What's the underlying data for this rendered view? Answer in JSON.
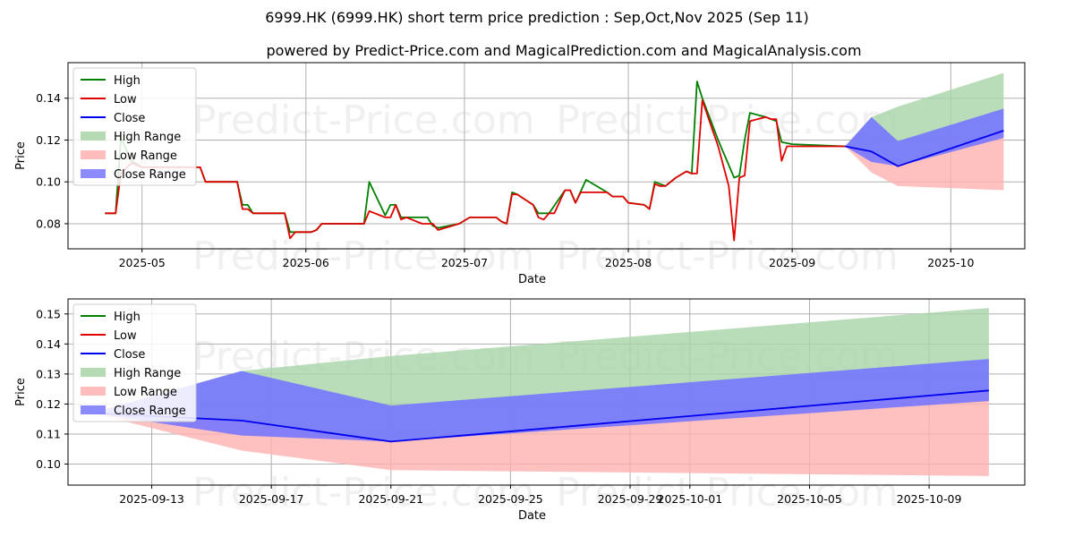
{
  "title": "6999.HK (6999.HK) short term price prediction : Sep,Oct,Nov 2025 (Sep 11)",
  "subtitle": "powered by Predict-Price.com and MagicalPrediction.com and MagicalAnalysis.com",
  "watermark": "Predict-Price.com",
  "colors": {
    "high": "#008000",
    "low": "#e00000",
    "close": "#0000ee",
    "high_range": "#a8d5a8",
    "low_range": "#ffb0b0",
    "close_range": "#7777ff"
  },
  "chart_data": [
    {
      "type": "line",
      "name": "history",
      "xlabel": "Date",
      "ylabel": "Price",
      "xlim": [
        "2025-04-17",
        "2025-10-15"
      ],
      "ylim": [
        0.068,
        0.157
      ],
      "x_ticks": [
        "2025-05",
        "2025-06",
        "2025-07",
        "2025-08",
        "2025-09",
        "2025-10"
      ],
      "x_tick_dates": [
        "2025-05-01",
        "2025-06-01",
        "2025-07-01",
        "2025-08-01",
        "2025-09-01",
        "2025-10-01"
      ],
      "y_ticks": [
        "0.08",
        "0.10",
        "0.12",
        "0.14"
      ],
      "y_tick_values": [
        0.08,
        0.1,
        0.12,
        0.14
      ],
      "legend": [
        "High",
        "Low",
        "Close",
        "High Range",
        "Low Range",
        "Close Range"
      ],
      "legend_position": "upper-left",
      "series": [
        {
          "name": "High",
          "points": [
            [
              "2025-04-24",
              0.085
            ],
            [
              "2025-04-26",
              0.085
            ],
            [
              "2025-04-27",
              0.121
            ],
            [
              "2025-04-29",
              0.11
            ],
            [
              "2025-05-01",
              0.107
            ],
            [
              "2025-05-12",
              0.107
            ],
            [
              "2025-05-13",
              0.1
            ],
            [
              "2025-05-19",
              0.1
            ],
            [
              "2025-05-20",
              0.089
            ],
            [
              "2025-05-21",
              0.089
            ],
            [
              "2025-05-22",
              0.085
            ],
            [
              "2025-05-28",
              0.085
            ],
            [
              "2025-05-29",
              0.076
            ],
            [
              "2025-06-02",
              0.076
            ],
            [
              "2025-06-03",
              0.077
            ],
            [
              "2025-06-04",
              0.08
            ],
            [
              "2025-06-12",
              0.08
            ],
            [
              "2025-06-13",
              0.1
            ],
            [
              "2025-06-16",
              0.084
            ],
            [
              "2025-06-17",
              0.089
            ],
            [
              "2025-06-18",
              0.089
            ],
            [
              "2025-06-19",
              0.083
            ],
            [
              "2025-06-24",
              0.083
            ],
            [
              "2025-06-25",
              0.079
            ],
            [
              "2025-06-26",
              0.078
            ],
            [
              "2025-06-30",
              0.08
            ],
            [
              "2025-07-02",
              0.083
            ],
            [
              "2025-07-07",
              0.083
            ],
            [
              "2025-07-08",
              0.081
            ],
            [
              "2025-07-09",
              0.08
            ],
            [
              "2025-07-10",
              0.095
            ],
            [
              "2025-07-11",
              0.094
            ],
            [
              "2025-07-14",
              0.089
            ],
            [
              "2025-07-15",
              0.085
            ],
            [
              "2025-07-17",
              0.085
            ],
            [
              "2025-07-20",
              0.096
            ],
            [
              "2025-07-21",
              0.096
            ],
            [
              "2025-07-22",
              0.09
            ],
            [
              "2025-07-24",
              0.101
            ],
            [
              "2025-07-28",
              0.095
            ],
            [
              "2025-07-29",
              0.093
            ],
            [
              "2025-07-31",
              0.093
            ],
            [
              "2025-08-01",
              0.09
            ],
            [
              "2025-08-04",
              0.089
            ],
            [
              "2025-08-05",
              0.087
            ],
            [
              "2025-08-06",
              0.1
            ],
            [
              "2025-08-07",
              0.099
            ],
            [
              "2025-08-08",
              0.098
            ],
            [
              "2025-08-10",
              0.102
            ],
            [
              "2025-08-12",
              0.105
            ],
            [
              "2025-08-13",
              0.104
            ],
            [
              "2025-08-14",
              0.148
            ],
            [
              "2025-08-15",
              0.14
            ],
            [
              "2025-08-18",
              0.12
            ],
            [
              "2025-08-20",
              0.108
            ],
            [
              "2025-08-21",
              0.102
            ],
            [
              "2025-08-22",
              0.103
            ],
            [
              "2025-08-23",
              0.12
            ],
            [
              "2025-08-24",
              0.133
            ],
            [
              "2025-08-27",
              0.131
            ],
            [
              "2025-08-29",
              0.129
            ],
            [
              "2025-08-30",
              0.119
            ],
            [
              "2025-09-01",
              0.118
            ],
            [
              "2025-09-11",
              0.117
            ]
          ]
        },
        {
          "name": "Low",
          "points": [
            [
              "2025-04-24",
              0.085
            ],
            [
              "2025-04-26",
              0.085
            ],
            [
              "2025-04-27",
              0.104
            ],
            [
              "2025-04-29",
              0.109
            ],
            [
              "2025-05-01",
              0.107
            ],
            [
              "2025-05-12",
              0.107
            ],
            [
              "2025-05-13",
              0.1
            ],
            [
              "2025-05-19",
              0.1
            ],
            [
              "2025-05-20",
              0.087
            ],
            [
              "2025-05-21",
              0.087
            ],
            [
              "2025-05-22",
              0.085
            ],
            [
              "2025-05-28",
              0.085
            ],
            [
              "2025-05-29",
              0.073
            ],
            [
              "2025-05-30",
              0.076
            ],
            [
              "2025-06-02",
              0.076
            ],
            [
              "2025-06-03",
              0.077
            ],
            [
              "2025-06-04",
              0.08
            ],
            [
              "2025-06-12",
              0.08
            ],
            [
              "2025-06-13",
              0.086
            ],
            [
              "2025-06-16",
              0.083
            ],
            [
              "2025-06-17",
              0.083
            ],
            [
              "2025-06-18",
              0.089
            ],
            [
              "2025-06-19",
              0.082
            ],
            [
              "2025-06-20",
              0.083
            ],
            [
              "2025-06-23",
              0.08
            ],
            [
              "2025-06-25",
              0.08
            ],
            [
              "2025-06-26",
              0.077
            ],
            [
              "2025-06-30",
              0.08
            ],
            [
              "2025-07-02",
              0.083
            ],
            [
              "2025-07-07",
              0.083
            ],
            [
              "2025-07-08",
              0.081
            ],
            [
              "2025-07-09",
              0.08
            ],
            [
              "2025-07-10",
              0.094
            ],
            [
              "2025-07-11",
              0.094
            ],
            [
              "2025-07-14",
              0.089
            ],
            [
              "2025-07-15",
              0.083
            ],
            [
              "2025-07-16",
              0.082
            ],
            [
              "2025-07-17",
              0.085
            ],
            [
              "2025-07-18",
              0.085
            ],
            [
              "2025-07-20",
              0.096
            ],
            [
              "2025-07-21",
              0.096
            ],
            [
              "2025-07-22",
              0.09
            ],
            [
              "2025-07-23",
              0.095
            ],
            [
              "2025-07-28",
              0.095
            ],
            [
              "2025-07-29",
              0.093
            ],
            [
              "2025-07-31",
              0.093
            ],
            [
              "2025-08-01",
              0.09
            ],
            [
              "2025-08-04",
              0.089
            ],
            [
              "2025-08-05",
              0.087
            ],
            [
              "2025-08-06",
              0.099
            ],
            [
              "2025-08-07",
              0.098
            ],
            [
              "2025-08-08",
              0.098
            ],
            [
              "2025-08-10",
              0.102
            ],
            [
              "2025-08-12",
              0.105
            ],
            [
              "2025-08-13",
              0.104
            ],
            [
              "2025-08-14",
              0.104
            ],
            [
              "2025-08-15",
              0.139
            ],
            [
              "2025-08-18",
              0.117
            ],
            [
              "2025-08-20",
              0.098
            ],
            [
              "2025-08-21",
              0.072
            ],
            [
              "2025-08-22",
              0.102
            ],
            [
              "2025-08-23",
              0.103
            ],
            [
              "2025-08-24",
              0.129
            ],
            [
              "2025-08-27",
              0.131
            ],
            [
              "2025-08-28",
              0.13
            ],
            [
              "2025-08-29",
              0.13
            ],
            [
              "2025-08-30",
              0.11
            ],
            [
              "2025-08-31",
              0.117
            ],
            [
              "2025-09-01",
              0.117
            ],
            [
              "2025-09-11",
              0.117
            ]
          ]
        },
        {
          "name": "Close",
          "points": [
            [
              "2025-09-11",
              0.117
            ],
            [
              "2025-09-16",
              0.1145
            ],
            [
              "2025-09-21",
              0.1075
            ],
            [
              "2025-10-11",
              0.1245
            ]
          ]
        },
        {
          "name": "High Range",
          "points": [
            [
              "2025-09-11",
              0.117
            ],
            [
              "2025-09-16",
              0.131
            ],
            [
              "2025-09-21",
              0.136
            ],
            [
              "2025-10-11",
              0.152
            ]
          ]
        },
        {
          "name": "Low Range",
          "points": [
            [
              "2025-09-11",
              0.117
            ],
            [
              "2025-09-16",
              0.1045
            ],
            [
              "2025-09-21",
              0.098
            ],
            [
              "2025-10-11",
              0.096
            ]
          ]
        },
        {
          "name": "Close Range",
          "upper": [
            [
              "2025-09-11",
              0.117
            ],
            [
              "2025-09-16",
              0.131
            ],
            [
              "2025-09-21",
              0.1195
            ],
            [
              "2025-10-11",
              0.135
            ]
          ],
          "lower": [
            [
              "2025-09-11",
              0.117
            ],
            [
              "2025-09-16",
              0.1095
            ],
            [
              "2025-09-21",
              0.1075
            ],
            [
              "2025-10-11",
              0.121
            ]
          ]
        }
      ]
    },
    {
      "type": "line",
      "name": "forecast-zoom",
      "xlabel": "Date",
      "ylabel": "Price",
      "xlim": [
        "2025-09-10.2",
        "2025-10-12.2"
      ],
      "ylim": [
        0.093,
        0.155
      ],
      "x_ticks": [
        "2025-09-13",
        "2025-09-17",
        "2025-09-21",
        "2025-09-25",
        "2025-09-29",
        "2025-10-01",
        "2025-10-05",
        "2025-10-09"
      ],
      "x_tick_dates": [
        "2025-09-13",
        "2025-09-17",
        "2025-09-21",
        "2025-09-25",
        "2025-09-29",
        "2025-10-01",
        "2025-10-05",
        "2025-10-09"
      ],
      "y_ticks": [
        "0.10",
        "0.11",
        "0.12",
        "0.13",
        "0.14",
        "0.15"
      ],
      "y_tick_values": [
        0.1,
        0.11,
        0.12,
        0.13,
        0.14,
        0.15
      ],
      "legend": [
        "High",
        "Low",
        "Close",
        "High Range",
        "Low Range",
        "Close Range"
      ],
      "legend_position": "upper-left",
      "series": [
        {
          "name": "Close",
          "points": [
            [
              "2025-09-11",
              0.117
            ],
            [
              "2025-09-16",
              0.1145
            ],
            [
              "2025-09-21",
              0.1075
            ],
            [
              "2025-10-11",
              0.1245
            ]
          ]
        },
        {
          "name": "High Range",
          "points": [
            [
              "2025-09-11",
              0.117
            ],
            [
              "2025-09-16",
              0.131
            ],
            [
              "2025-09-21",
              0.136
            ],
            [
              "2025-10-11",
              0.152
            ]
          ]
        },
        {
          "name": "Low Range",
          "points": [
            [
              "2025-09-11",
              0.117
            ],
            [
              "2025-09-16",
              0.1045
            ],
            [
              "2025-09-21",
              0.098
            ],
            [
              "2025-10-11",
              0.096
            ]
          ]
        },
        {
          "name": "Close Range",
          "upper": [
            [
              "2025-09-11",
              0.117
            ],
            [
              "2025-09-16",
              0.131
            ],
            [
              "2025-09-21",
              0.1195
            ],
            [
              "2025-10-11",
              0.135
            ]
          ],
          "lower": [
            [
              "2025-09-11",
              0.117
            ],
            [
              "2025-09-16",
              0.1095
            ],
            [
              "2025-09-21",
              0.1075
            ],
            [
              "2025-10-11",
              0.121
            ]
          ]
        }
      ]
    }
  ]
}
